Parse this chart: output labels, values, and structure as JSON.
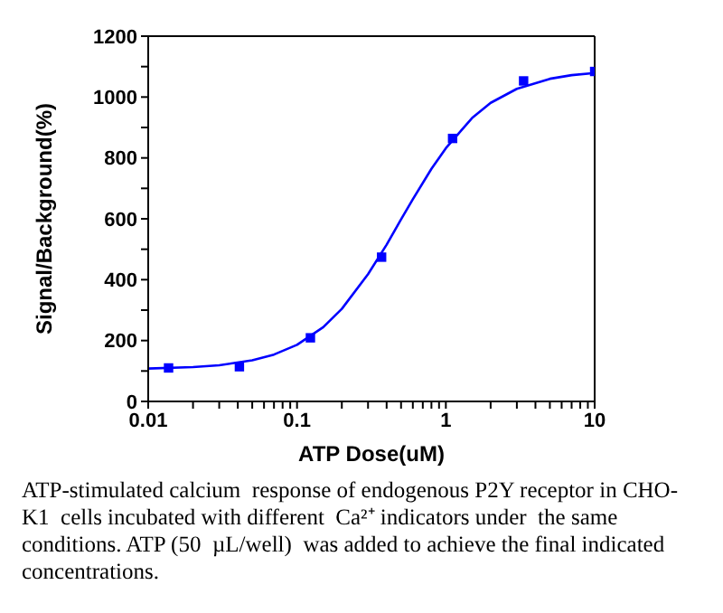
{
  "chart_data": {
    "type": "scatter",
    "xlabel": "ATP Dose(uM)",
    "ylabel": "Signal/Background(%)",
    "log": "x",
    "grid": false,
    "marker": "square",
    "xlim": [
      0.01,
      10
    ],
    "xticks": [
      0.01,
      {
        "value": 0.02,
        "label": null
      },
      {
        "value": 0.03,
        "label": null
      },
      {
        "value": 0.04,
        "label": null
      },
      {
        "value": 0.05,
        "label": null
      },
      {
        "value": 0.06,
        "label": null
      },
      {
        "value": 0.07,
        "label": null
      },
      {
        "value": 0.08,
        "label": null
      },
      {
        "value": 0.09,
        "label": null
      },
      0.1,
      {
        "value": 0.2,
        "label": null
      },
      {
        "value": 0.3,
        "label": null
      },
      {
        "value": 0.4,
        "label": null
      },
      {
        "value": 0.5,
        "label": null
      },
      {
        "value": 0.6,
        "label": null
      },
      {
        "value": 0.7,
        "label": null
      },
      {
        "value": 0.8,
        "label": null
      },
      {
        "value": 0.9,
        "label": null
      },
      1,
      {
        "value": 2,
        "label": null
      },
      {
        "value": 3,
        "label": null
      },
      {
        "value": 4,
        "label": null
      },
      {
        "value": 5,
        "label": null
      },
      {
        "value": 6,
        "label": null
      },
      {
        "value": 7,
        "label": null
      },
      {
        "value": 8,
        "label": null
      },
      {
        "value": 9,
        "label": null
      },
      10
    ],
    "ylim": [
      0,
      1200
    ],
    "yticks": [
      0,
      {
        "value": 100,
        "label": null
      },
      200,
      {
        "value": 300,
        "label": null
      },
      400,
      {
        "value": 500,
        "label": null
      },
      600,
      {
        "value": 700,
        "label": null
      },
      800,
      {
        "value": 900,
        "label": null
      },
      1000,
      {
        "value": 1100,
        "label": null
      },
      1200
    ],
    "series": [
      {
        "color": "#0000ff",
        "x": [
          0.0137,
          0.041,
          0.123,
          0.37,
          1.11,
          3.33,
          10
        ],
        "values": [
          110,
          114,
          209,
          474,
          864,
          1053,
          1084
        ]
      },
      {
        "type": "line",
        "color": "#0000ff",
        "marker": "none",
        "line_style": "solid",
        "x": [
          0.01,
          0.02,
          0.03,
          0.05,
          0.07,
          0.1,
          0.15,
          0.2,
          0.3,
          0.4,
          0.5,
          0.6,
          0.8,
          1,
          1.5,
          2,
          3,
          5,
          7,
          10
        ],
        "values": [
          108,
          113,
          119,
          135,
          154,
          186,
          244,
          304,
          418,
          515,
          598,
          664,
          764,
          832,
          931,
          981,
          1027,
          1060,
          1072,
          1079
        ]
      }
    ],
    "annotations": [
      "ATP-stimulated calcium  response of endogenous P2Y receptor in CHO-K1  cells incubated with different  Ca²⁺ indicators under  the same conditions. ATP (50  µL/well)  was added to achieve the final indicated concentrations."
    ]
  }
}
